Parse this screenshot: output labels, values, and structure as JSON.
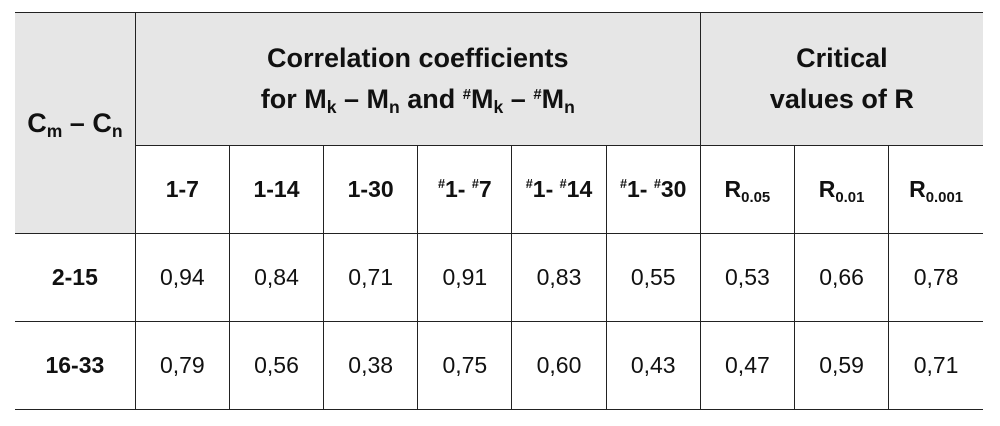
{
  "table": {
    "corner": {
      "main": "C",
      "sub1": "m",
      "dash": " – ",
      "main2": "C",
      "sub2": "n"
    },
    "group1": {
      "line1": "Correlation coefficients",
      "line2_prefix": "for M",
      "k1": "k",
      "dash1": " – M",
      "n1": "n",
      "and": " and ",
      "hash1": "#",
      "m2": "M",
      "k2": "k",
      "dash2": " – ",
      "hash2": "#",
      "m3": "M",
      "n2": "n"
    },
    "group2": {
      "line1": "Critical",
      "line2": "values of R"
    },
    "subheaders": {
      "c1": "1-7",
      "c2": "1-14",
      "c3": "1-30",
      "c4_hash": "#",
      "c4_a": "1- ",
      "c4_hash2": "#",
      "c4_b": "7",
      "c5_hash": "#",
      "c5_a": "1- ",
      "c5_hash2": "#",
      "c5_b": "14",
      "c6_hash": "#",
      "c6_a": "1- ",
      "c6_hash2": "#",
      "c6_b": "30",
      "r1": "R",
      "r1_sub": "0.05",
      "r2": "R",
      "r2_sub": "0.01",
      "r3": "R",
      "r3_sub": "0.001"
    },
    "rows": [
      {
        "label": "2-15",
        "values": [
          "0,94",
          "0,84",
          "0,71",
          "0,91",
          "0,83",
          "0,55",
          "0,53",
          "0,66",
          "0,78"
        ]
      },
      {
        "label": "16-33",
        "values": [
          "0,79",
          "0,56",
          "0,38",
          "0,75",
          "0,60",
          "0,43",
          "0,47",
          "0,59",
          "0,71"
        ]
      }
    ]
  }
}
